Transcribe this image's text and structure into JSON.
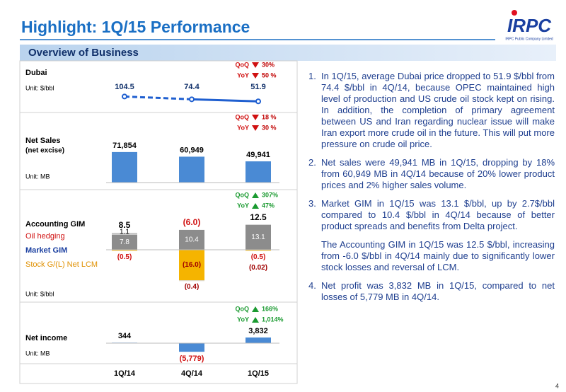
{
  "header": {
    "title": "Highlight: 1Q/15 Performance",
    "logo": "IRPC",
    "logo_subtitle": "IRPC Public Company Limited"
  },
  "section_title": "Overview of Business",
  "page_number": "4",
  "categories": [
    "1Q/14",
    "4Q/14",
    "1Q/15"
  ],
  "dubai": {
    "label": "Dubai",
    "unit": "Unit: $/bbl",
    "values": [
      104.5,
      74.4,
      51.9
    ],
    "color": "#1f5fd0",
    "changes": [
      {
        "label": "QoQ",
        "value": "30%",
        "direction": "down"
      },
      {
        "label": "YoY",
        "value": "50 %",
        "direction": "down"
      }
    ]
  },
  "net_sales": {
    "label": "Net Sales",
    "sublabel": "(net excise)",
    "unit": "Unit: MB",
    "values": [
      71854,
      60949,
      49941
    ],
    "value_labels": [
      "71,854",
      "60,949",
      "49,941"
    ],
    "color": "#4a8ad4",
    "changes": [
      {
        "label": "QoQ",
        "value": "18 %",
        "direction": "down"
      },
      {
        "label": "YoY",
        "value": "30 %",
        "direction": "down"
      }
    ]
  },
  "gim": {
    "unit": "Unit: $/bbl",
    "accounting": {
      "name": "Accounting GIM",
      "values": [
        8.5,
        -6.0,
        12.5
      ],
      "value_labels": [
        "8.5",
        "(6.0)",
        "12.5"
      ]
    },
    "oil_hedging": {
      "name": "Oil hedging",
      "values": [
        1.1,
        null,
        null
      ],
      "color": "#c8c8c8"
    },
    "market": {
      "name": "Market GIM",
      "values": [
        7.8,
        10.4,
        13.1
      ],
      "color": "#8c8c8c"
    },
    "stock": {
      "name": "Stock G/(L) Net LCM",
      "values": [
        -0.5,
        -16.0,
        -0.5
      ],
      "value_labels": [
        "(0.5)",
        "(16.0)",
        "(0.5)"
      ],
      "color": "#f5b400"
    },
    "lcm": {
      "values": [
        null,
        -0.4,
        -0.02
      ],
      "value_labels": [
        null,
        "(0.4)",
        "(0.02)"
      ]
    },
    "changes": [
      {
        "label": "QoQ",
        "value": "307%",
        "direction": "up"
      },
      {
        "label": "YoY",
        "value": "47%",
        "direction": "up"
      }
    ]
  },
  "net_income": {
    "label": "Net income",
    "unit": "Unit: MB",
    "values": [
      344,
      -5779,
      3832
    ],
    "value_labels": [
      "344",
      "(5,779)",
      "3,832"
    ],
    "color": "#4a8ad4",
    "changes": [
      {
        "label": "QoQ",
        "value": "166%",
        "direction": "up"
      },
      {
        "label": "YoY",
        "value": "1,014%",
        "direction": "up"
      }
    ]
  },
  "notes": [
    {
      "number": "1.",
      "text": "In 1Q/15, average Dubai price dropped to 51.9 $/bbl from 74.4 $/bbl in 4Q/14, because OPEC maintained high level of production and US crude oil stock kept on rising. In addition, the completion of primary agreement between US and Iran regarding nuclear issue will make Iran export more crude oil in the future. This will put more pressure on crude oil price."
    },
    {
      "number": "2.",
      "text": "Net sales were 49,941 MB in 1Q/15, dropping by 18% from 60,949 MB in 4Q/14 because of 20% lower product prices and 2% higher sales volume."
    },
    {
      "number": "3.",
      "text": "Market GIM in 1Q/15 was 13.1 $/bbl, up by 2.7$/bbl compared to 10.4 $/bbl in 4Q/14 because of better product spreads and benefits from Delta project."
    },
    {
      "number": null,
      "text": "The Accounting GIM in 1Q/15 was 12.5 $/bbl, increasing from -6.0 $/bbl in 4Q/14 mainly due to significantly lower stock losses and reversal of LCM."
    },
    {
      "number": "4.",
      "text": "Net profit was 3,832 MB in 1Q/15, compared to net losses of 5,779 MB in 4Q/14."
    }
  ]
}
